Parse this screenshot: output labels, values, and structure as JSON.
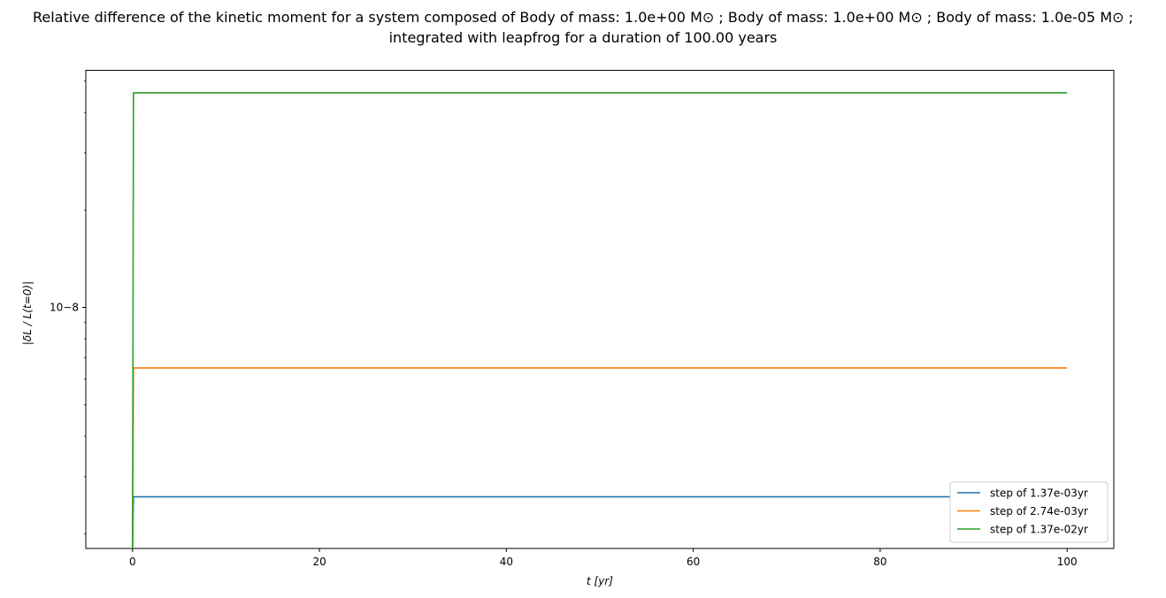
{
  "chart_data": {
    "type": "line",
    "title": {
      "line1": "Relative difference of the kinetic moment for a system composed of Body of mass: 1.0e+00 M⊙ ; Body of mass: 1.0e+00 M⊙ ; Body of mass: 1.0e-05 M⊙ ;",
      "line2": "integrated with leapfrog for a duration of 100.00 years"
    },
    "xlabel": "t [yr]",
    "ylabel": "|δL / L(t=0)|",
    "xlim": [
      -5,
      105
    ],
    "xticks": [
      0,
      20,
      40,
      60,
      80,
      100
    ],
    "ylog": true,
    "ylim": [
      1.8e-09,
      5.4e-08
    ],
    "ytick_label": "10−8",
    "grid": false,
    "legend_position": "lower-right",
    "series": [
      {
        "name": "step of 1.37e-03yr",
        "color": "#1f77b4",
        "points": [
          [
            0.0,
            1.8e-09
          ],
          [
            0.1,
            2.6e-09
          ],
          [
            100,
            2.6e-09
          ]
        ]
      },
      {
        "name": "step of 2.74e-03yr",
        "color": "#ff7f0e",
        "points": [
          [
            0.0,
            1.8e-09
          ],
          [
            0.1,
            6.5e-09
          ],
          [
            100,
            6.5e-09
          ]
        ]
      },
      {
        "name": "step of 1.37e-02yr",
        "color": "#2ca02c",
        "points": [
          [
            0.0,
            1.8e-09
          ],
          [
            0.1,
            4.6e-08
          ],
          [
            100,
            4.6e-08
          ]
        ]
      }
    ]
  }
}
